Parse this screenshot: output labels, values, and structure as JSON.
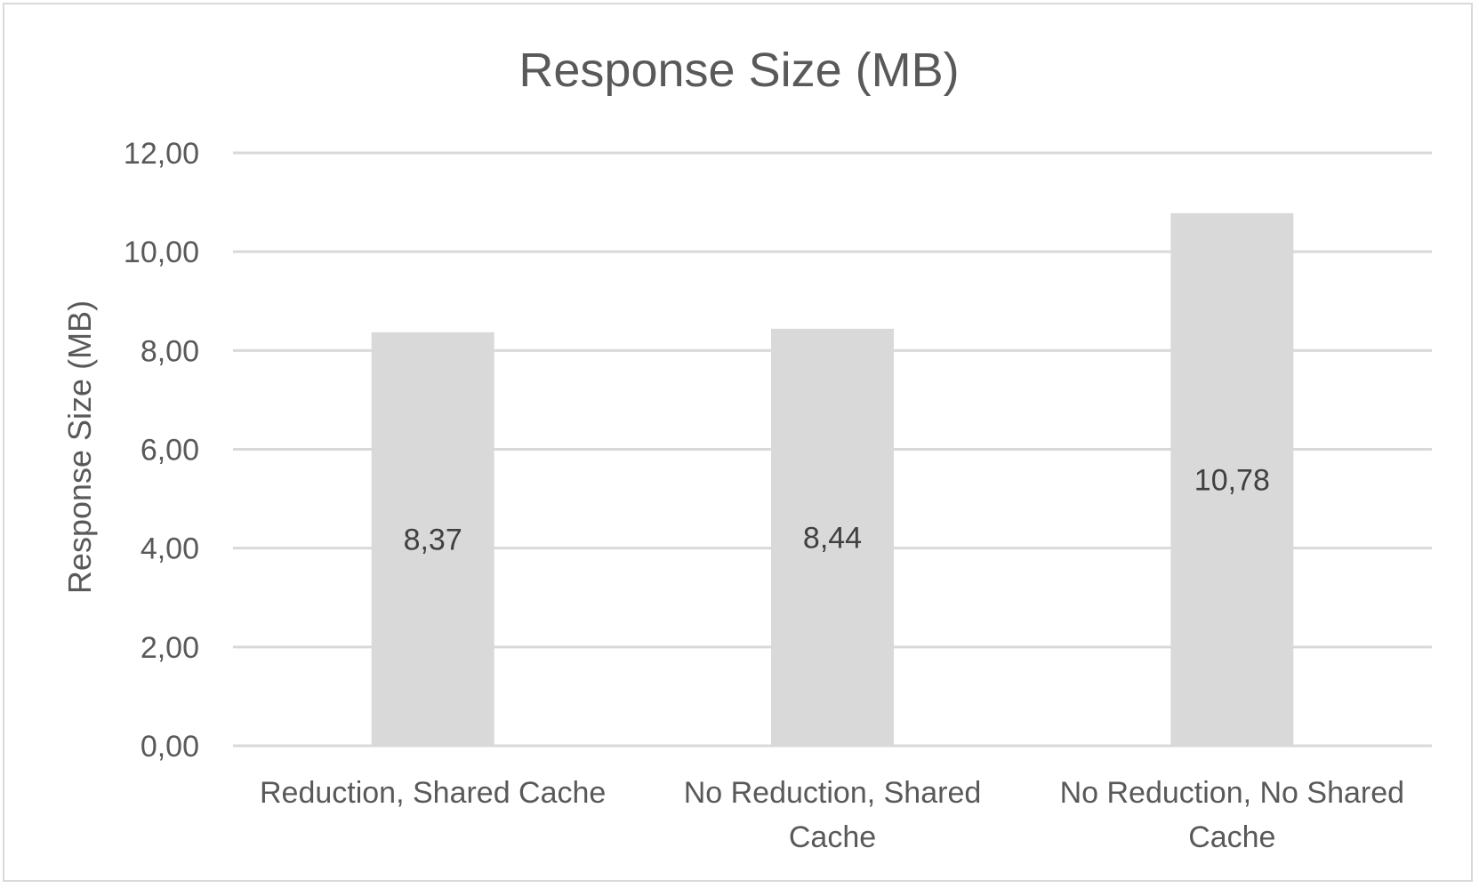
{
  "chart_data": {
    "type": "bar",
    "title": "Response Size (MB)",
    "ylabel": "Response Size (MB)",
    "xlabel": "",
    "categories": [
      [
        "Reduction, Shared Cache"
      ],
      [
        "No Reduction, Shared",
        "Cache"
      ],
      [
        "No Reduction, No Shared",
        "Cache"
      ]
    ],
    "values": [
      8.37,
      8.44,
      10.78
    ],
    "value_labels": [
      "8,37",
      "8,44",
      "10,78"
    ],
    "ylim": [
      0,
      12
    ],
    "yticks": [
      "0,00",
      "2,00",
      "4,00",
      "6,00",
      "8,00",
      "10,00",
      "12,00"
    ],
    "ytick_values": [
      0,
      2,
      4,
      6,
      8,
      10,
      12
    ],
    "grid": true,
    "legend": "none",
    "colors": {
      "bar": "#d9d9d9",
      "grid": "#d9d9d9",
      "text": "#595959",
      "label": "#404040"
    }
  }
}
